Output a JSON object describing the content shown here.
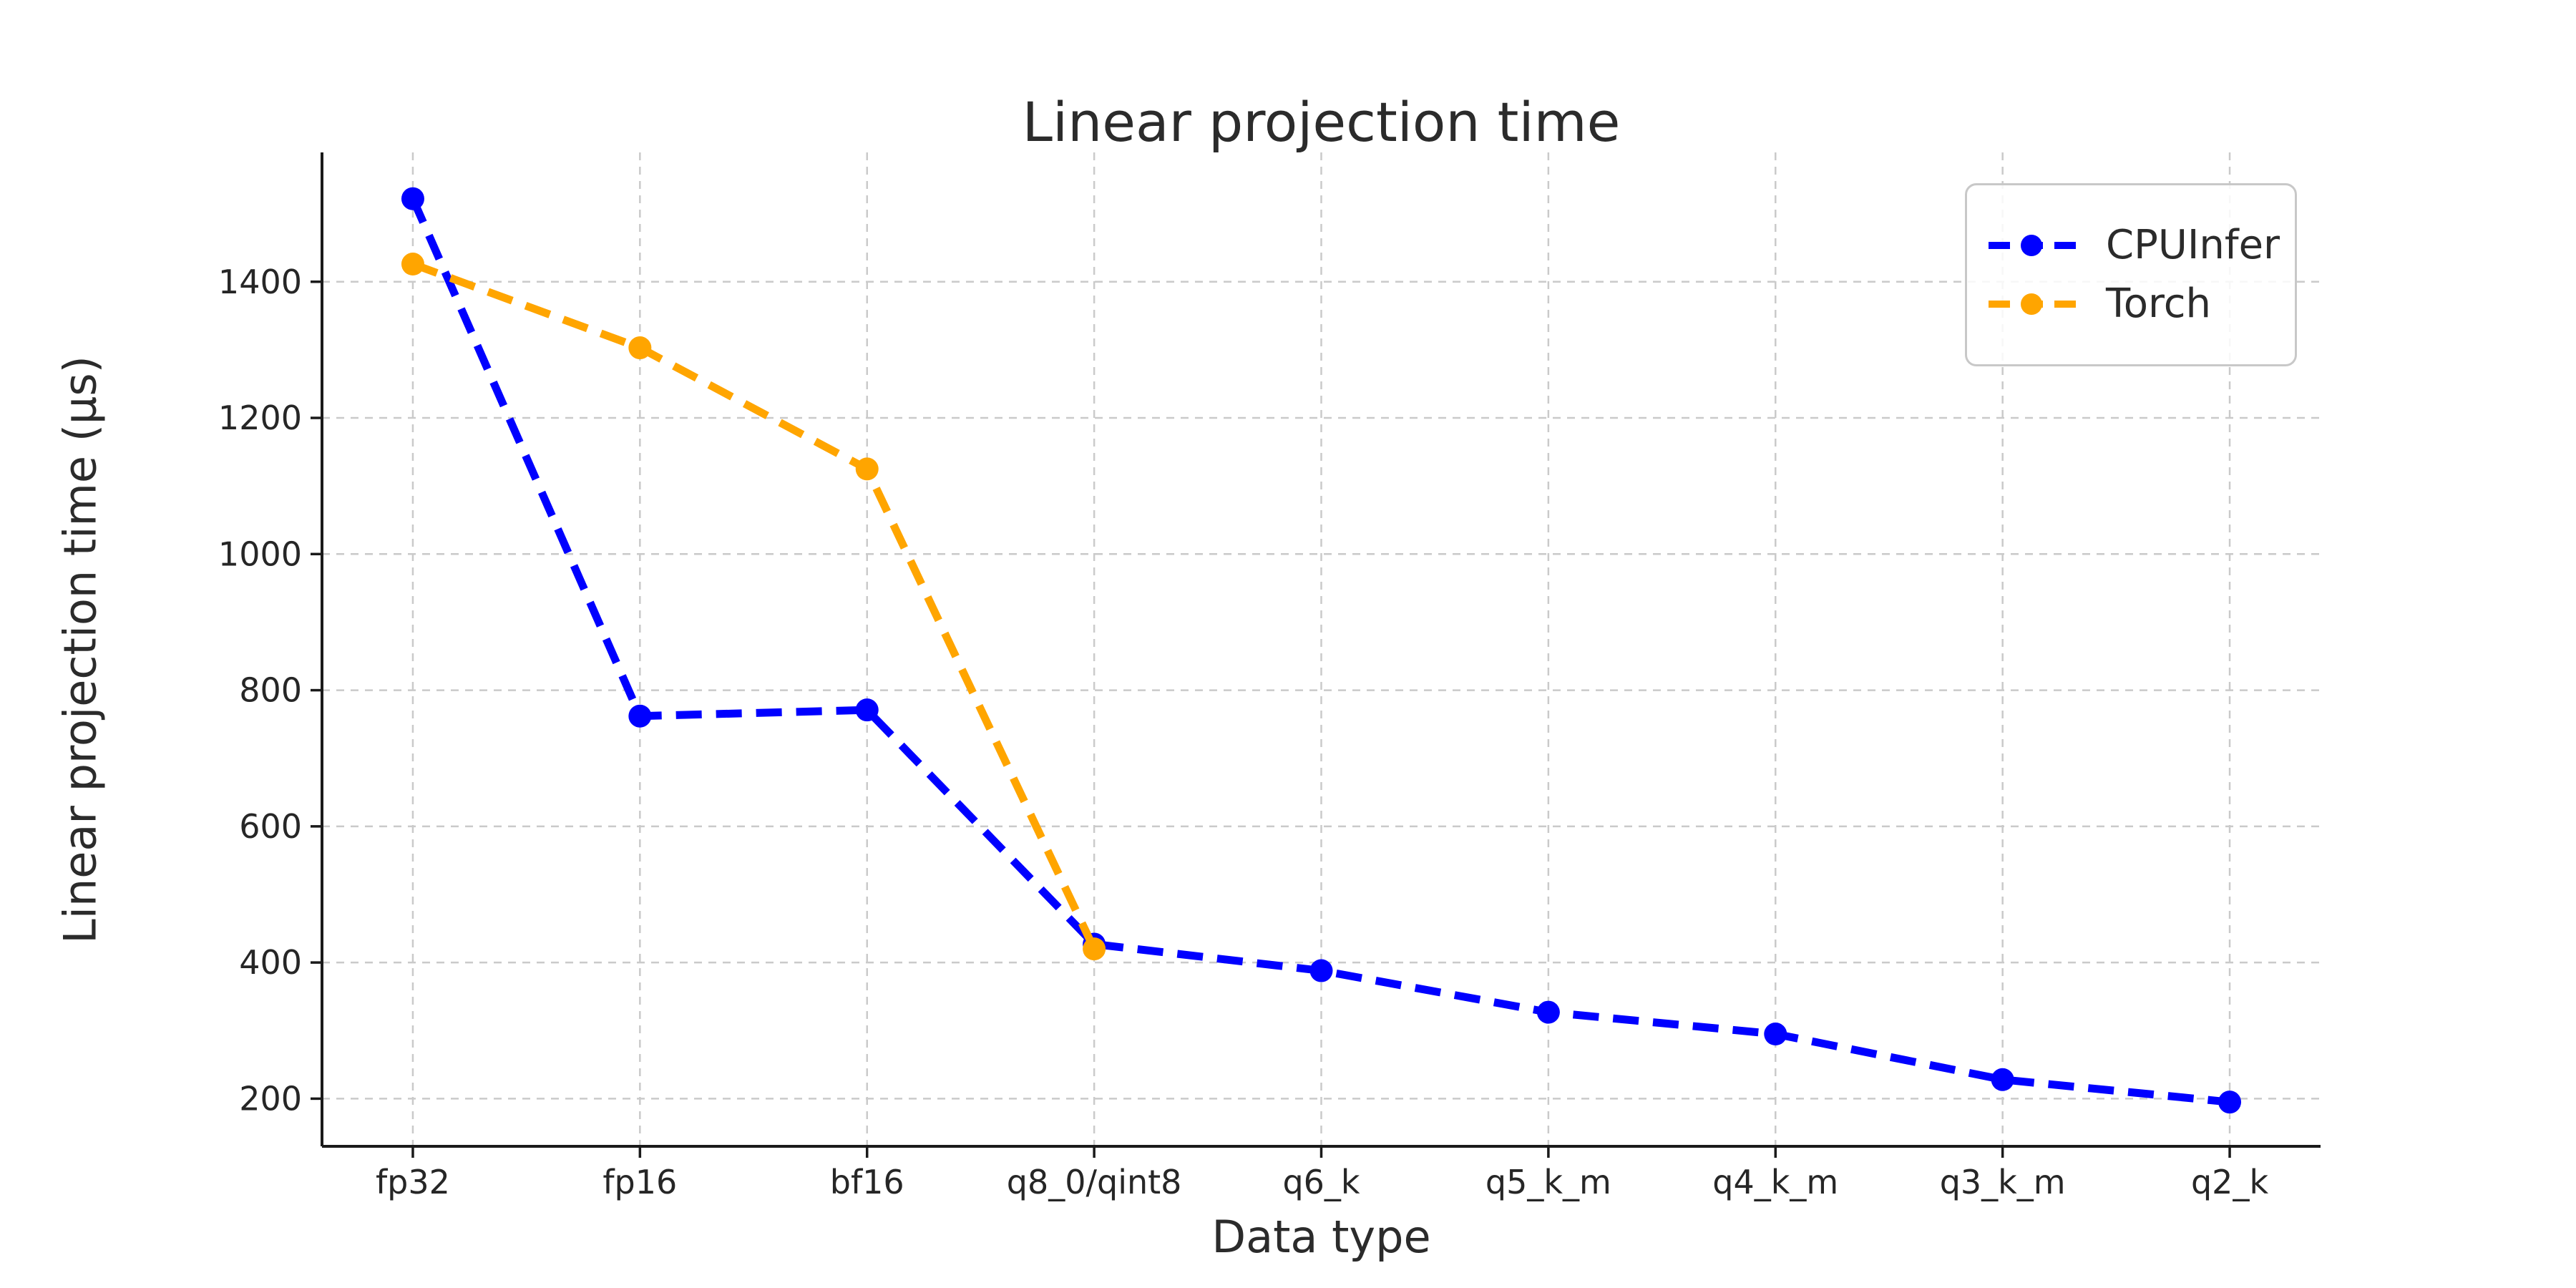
{
  "chart_data": {
    "type": "line",
    "title": "Linear projection time",
    "xlabel": "Data type",
    "ylabel": "Linear projection time (μs)",
    "categories": [
      "fp32",
      "fp16",
      "bf16",
      "q8_0/qint8",
      "q6_k",
      "q5_k_m",
      "q4_k_m",
      "q3_k_m",
      "q2_k"
    ],
    "series": [
      {
        "name": "CPUInfer",
        "color": "#0000ff",
        "values": [
          1522,
          762,
          771,
          427,
          388,
          327,
          295,
          228,
          195
        ]
      },
      {
        "name": "Torch",
        "color": "#ffa500",
        "values": [
          1426,
          1303,
          1125,
          420
        ]
      }
    ],
    "yticks": [
      200,
      400,
      600,
      800,
      1000,
      1200,
      1400
    ],
    "ylim": [
      130,
      1590
    ],
    "grid": "dashed-gray-both-axes",
    "line_style": "dashed",
    "marker": "circle",
    "legend_position": "upper right",
    "colors": {
      "grid": "#cacaca",
      "spine": "#1a1a1a",
      "text": "#262626"
    }
  }
}
